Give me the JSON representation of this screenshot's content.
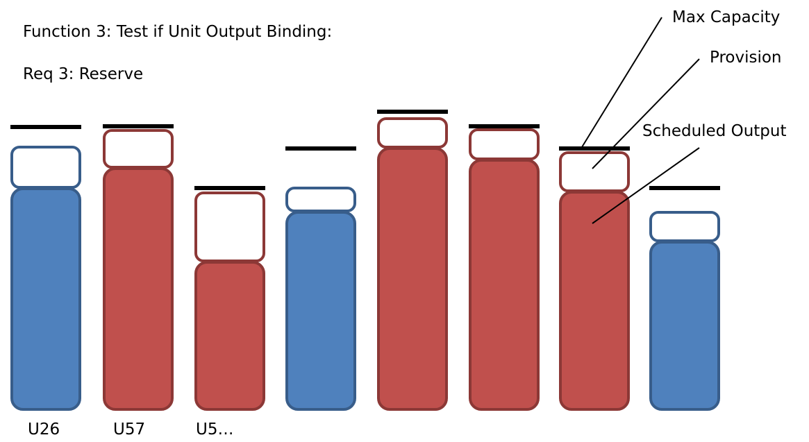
{
  "title": "Function 3: Test if Unit Output Binding:",
  "subtitle": "Req 3: Reserve",
  "colors": {
    "blue_fill": "#4f81bd",
    "blue_stroke": "#385d8a",
    "red_fill": "#c0504d",
    "red_stroke": "#8c3836",
    "cap_line": "#000000",
    "provision_fill": "#ffffff"
  },
  "legend": {
    "max_capacity": "Max Capacity",
    "provision": "Provision",
    "scheduled_output": "Scheduled Output"
  },
  "units": [
    {
      "label": "U26",
      "binding": false
    },
    {
      "label": "U57",
      "binding": true
    },
    {
      "label": "U5…",
      "binding": true
    },
    {
      "label": "",
      "binding": false
    },
    {
      "label": "",
      "binding": true
    },
    {
      "label": "",
      "binding": true
    },
    {
      "label": "",
      "binding": true
    },
    {
      "label": "",
      "binding": false
    }
  ]
}
